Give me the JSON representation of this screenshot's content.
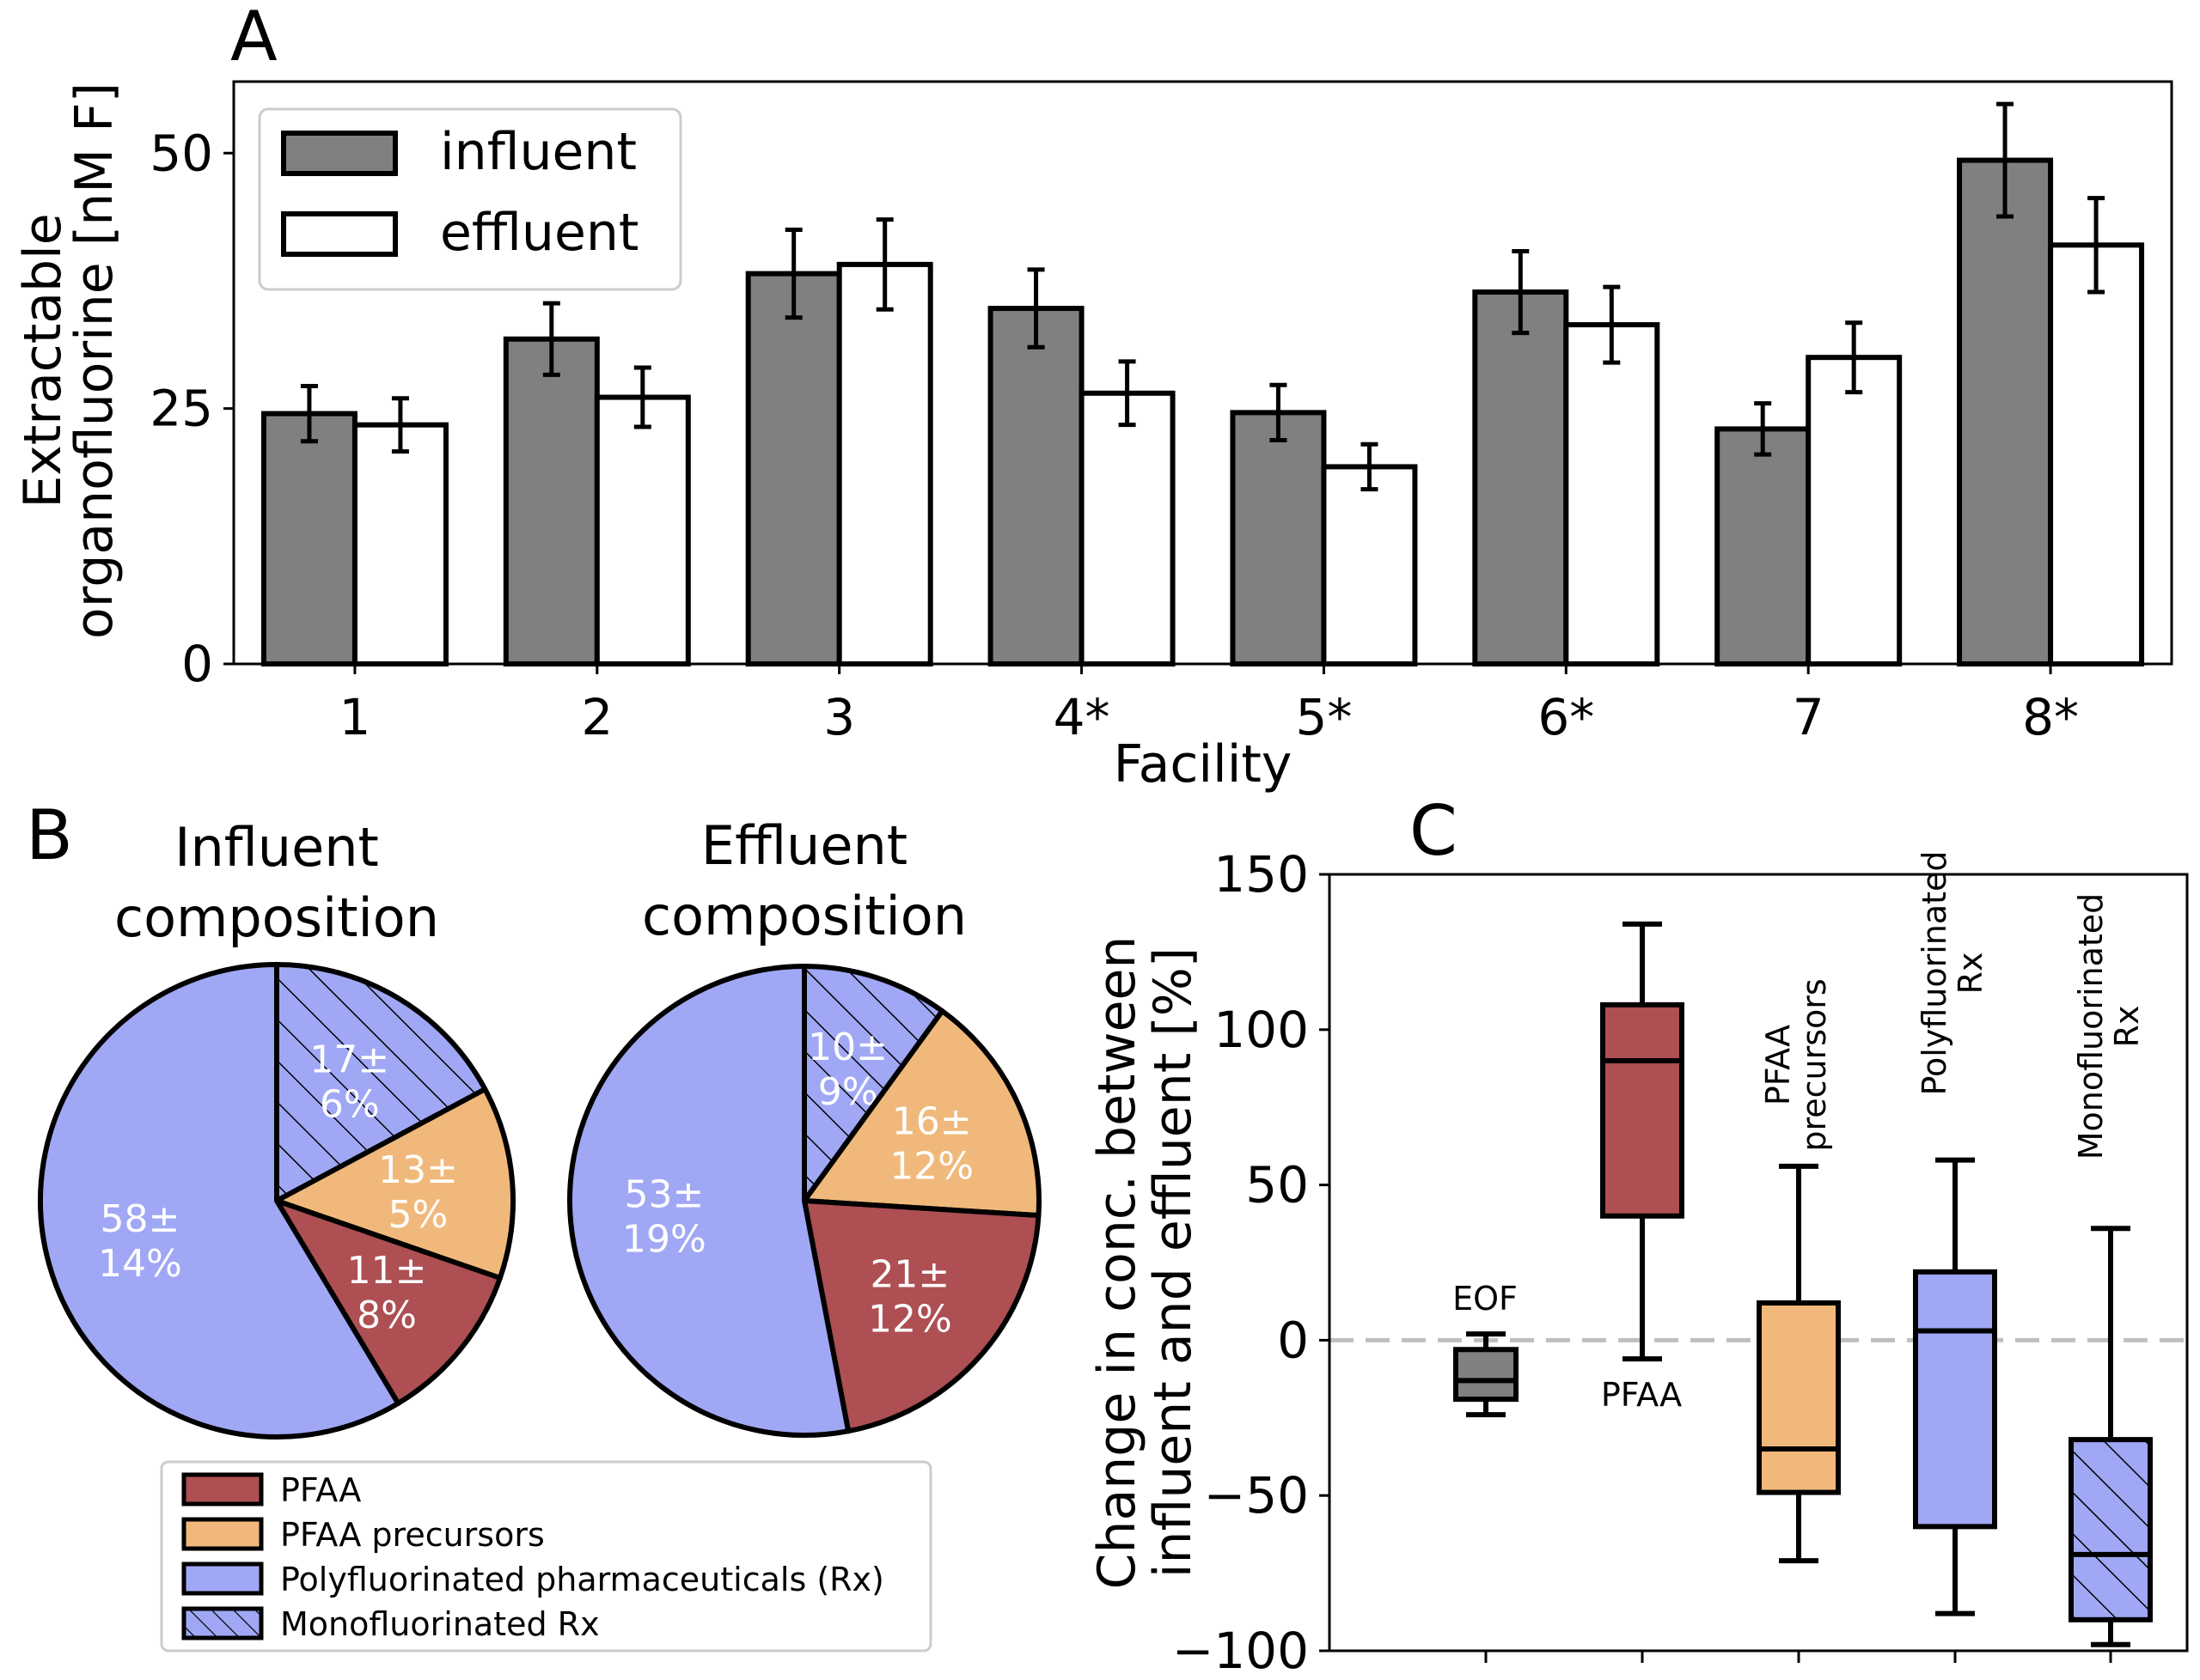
{
  "panels": {
    "a": "A",
    "b": "B",
    "c": "C"
  },
  "colors": {
    "influent": "#808080",
    "effluent": "#ffffff",
    "pfaa": "#ad4f53",
    "precursors": "#f0b97b",
    "rx": "#a0a8f5",
    "mono": "#a0a8f5",
    "eof": "#808080",
    "zero_line": "#bfbfbf"
  },
  "chart_data": [
    {
      "type": "bar",
      "panel": "A",
      "categories": [
        "1",
        "2",
        "3",
        "4*",
        "5*",
        "6*",
        "7",
        "8*"
      ],
      "series": [
        {
          "name": "influent",
          "values": [
            24.5,
            31.8,
            38.2,
            34.8,
            24.6,
            36.4,
            23.0,
            49.3
          ],
          "err": [
            2.7,
            3.5,
            4.3,
            3.8,
            2.7,
            4.0,
            2.5,
            5.5
          ]
        },
        {
          "name": "effluent",
          "values": [
            23.4,
            26.1,
            39.1,
            26.5,
            19.3,
            33.2,
            30.0,
            41.0
          ],
          "err": [
            2.6,
            2.9,
            4.4,
            3.1,
            2.2,
            3.7,
            3.4,
            4.6
          ]
        }
      ],
      "xlabel": "Facility",
      "ylabel_lines": [
        "Extractable",
        "organofluorine [nM F]"
      ],
      "ylim": [
        0,
        57
      ],
      "yticks": [
        "0",
        "25",
        "50"
      ],
      "legend": {
        "position": "top-left",
        "entries": [
          "influent",
          "effluent"
        ]
      }
    },
    {
      "type": "pie",
      "panel": "B",
      "title_lines": [
        "Influent",
        "composition"
      ],
      "slices": [
        {
          "category": "mono",
          "value": 17,
          "label_lines": [
            "17±",
            "6%"
          ]
        },
        {
          "category": "precursors",
          "value": 13,
          "label_lines": [
            "13±",
            "5%"
          ]
        },
        {
          "category": "pfaa",
          "value": 11,
          "label_lines": [
            "11±",
            "8%"
          ]
        },
        {
          "category": "rx",
          "value": 58,
          "label_lines": [
            "58±",
            "14%"
          ]
        }
      ]
    },
    {
      "type": "pie",
      "panel": "B",
      "title_lines": [
        "Effluent",
        "composition"
      ],
      "slices": [
        {
          "category": "mono",
          "value": 10,
          "label_lines": [
            "10±",
            "9%"
          ]
        },
        {
          "category": "precursors",
          "value": 16,
          "label_lines": [
            "16±",
            "12%"
          ]
        },
        {
          "category": "pfaa",
          "value": 21,
          "label_lines": [
            "21±",
            "12%"
          ]
        },
        {
          "category": "rx",
          "value": 53,
          "label_lines": [
            "53±",
            "19%"
          ]
        }
      ]
    },
    {
      "type": "box",
      "panel": "C",
      "ylabel_lines": [
        "Change in conc. between",
        "influent and effluent [%]"
      ],
      "ylim": [
        -100,
        150
      ],
      "yticks": [
        "150",
        "100",
        "50",
        "0",
        "−50",
        "−100"
      ],
      "boxes": [
        {
          "label_lines": [
            "EOF"
          ],
          "category": "eof",
          "whislo": -24,
          "q1": -19,
          "median": -13,
          "q3": -3,
          "whishi": 2
        },
        {
          "label_lines": [
            "PFAA"
          ],
          "category": "pfaa",
          "whislo": -6,
          "q1": 40,
          "median": 90,
          "q3": 108,
          "whishi": 134
        },
        {
          "label_lines": [
            "PFAA",
            "precursors"
          ],
          "category": "precursors",
          "whislo": -71,
          "q1": -49,
          "median": -35,
          "q3": 12,
          "whishi": 56
        },
        {
          "label_lines": [
            "Polyfluorinated",
            "Rx"
          ],
          "category": "rx",
          "whislo": -88,
          "q1": -60,
          "median": 3,
          "q3": 22,
          "whishi": 58
        },
        {
          "label_lines": [
            "Monofluorinated",
            "Rx"
          ],
          "category": "mono",
          "whislo": -98,
          "q1": -90,
          "median": -69,
          "q3": -32,
          "whishi": 36
        }
      ]
    }
  ],
  "legend_b": [
    {
      "category": "pfaa",
      "label": "PFAA"
    },
    {
      "category": "precursors",
      "label": "PFAA precursors"
    },
    {
      "category": "rx",
      "label": "Polyfluorinated pharmaceuticals (Rx)"
    },
    {
      "category": "mono",
      "label": "Monofluorinated Rx"
    }
  ]
}
